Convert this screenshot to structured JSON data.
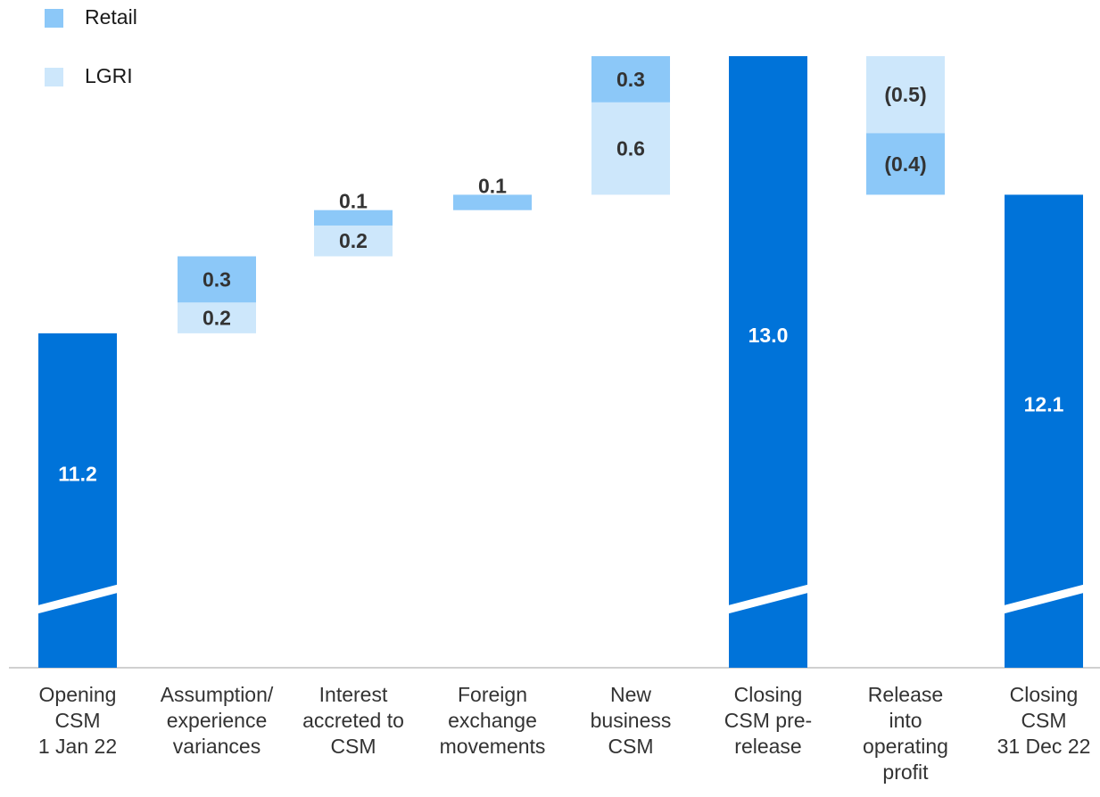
{
  "legend": [
    {
      "label": "Retail",
      "color": "#8cc8f8"
    },
    {
      "label": "LGRI",
      "color": "#cde7fb"
    }
  ],
  "colors": {
    "total": "#0073d9",
    "retail": "#8cc8f8",
    "lgri": "#cde7fb",
    "axis": "#d0d0d0"
  },
  "chart_data": {
    "type": "bar",
    "subtype": "waterfall",
    "axis_break_on_totals": true,
    "legend_position": "top-left",
    "categories": [
      [
        "Opening",
        "CSM",
        "1 Jan 22"
      ],
      [
        "Assumption/",
        "experience",
        "variances"
      ],
      [
        "Interest",
        "accreted to",
        "CSM"
      ],
      [
        "Foreign",
        "exchange",
        "movements"
      ],
      [
        "New",
        "business",
        "CSM"
      ],
      [
        "Closing",
        "CSM pre-",
        "release"
      ],
      [
        "Release",
        "into",
        "operating",
        "profit"
      ],
      [
        "Closing",
        "CSM",
        "31 Dec 22"
      ]
    ],
    "bars": [
      {
        "kind": "total",
        "value": 11.2,
        "label": "11.2"
      },
      {
        "kind": "delta",
        "lgri": 0.2,
        "lgri_label": "0.2",
        "retail": 0.3,
        "retail_label": "0.3"
      },
      {
        "kind": "delta",
        "lgri": 0.2,
        "lgri_label": "0.2",
        "retail": 0.1,
        "retail_label": "0.1"
      },
      {
        "kind": "delta",
        "retail": 0.1,
        "retail_label": "0.1"
      },
      {
        "kind": "delta",
        "lgri": 0.6,
        "lgri_label": "0.6",
        "retail": 0.3,
        "retail_label": "0.3"
      },
      {
        "kind": "total",
        "value": 13.0,
        "label": "13.0"
      },
      {
        "kind": "delta",
        "lgri": -0.5,
        "lgri_label": "(0.5)",
        "retail": -0.4,
        "retail_label": "(0.4)"
      },
      {
        "kind": "total",
        "value": 12.1,
        "label": "12.1"
      }
    ]
  }
}
